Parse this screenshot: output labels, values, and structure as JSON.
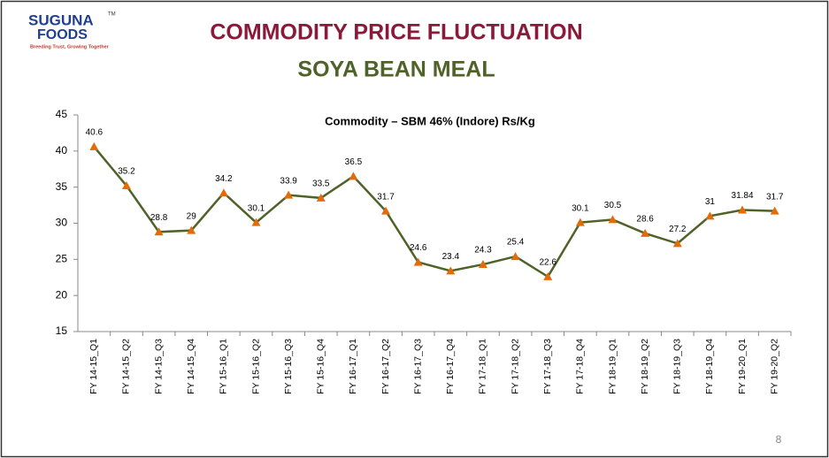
{
  "logo": {
    "name": "SUGUNA",
    "trademark": "TM",
    "sub": "FOODS",
    "tagline": "Breeding Trust, Growing Together"
  },
  "title": "COMMODITY PRICE FLUCTUATION",
  "subtitle": "SOYA BEAN MEAL",
  "page_number": 8,
  "chart_data": {
    "type": "line",
    "title": "Commodity – SBM 46% (Indore) Rs/Kg",
    "categories": [
      "FY 14-15_Q1",
      "FY 14-15_Q2",
      "FY 14-15_Q3",
      "FY 14-15_Q4",
      "FY 15-16_Q1",
      "FY 15-16_Q2",
      "FY 15-16_Q3",
      "FY 15-16_Q4",
      "FY 16-17_Q1",
      "FY 16-17_Q2",
      "FY 16-17_Q3",
      "FY 16-17_Q4",
      "FY 17-18_Q1",
      "FY 17-18_Q2",
      "FY 17-18_Q3",
      "FY 17-18_Q4",
      "FY 18-19_Q1",
      "FY 18-19_Q2",
      "FY 18-19_Q3",
      "FY 18-19_Q4",
      "FY 19-20_Q1",
      "FY 19-20_Q2"
    ],
    "values": [
      40.6,
      35.2,
      28.8,
      29,
      34.2,
      30.1,
      33.9,
      33.5,
      36.5,
      31.7,
      24.6,
      23.4,
      24.3,
      25.4,
      22.6,
      30.1,
      30.5,
      28.6,
      27.2,
      31,
      31.84,
      31.7
    ],
    "color": "#4f6228",
    "marker_color": "#e36c09",
    "ylim": [
      15,
      45
    ],
    "yticks": [
      15,
      20,
      25,
      30,
      35,
      40,
      45
    ],
    "grid": false
  }
}
